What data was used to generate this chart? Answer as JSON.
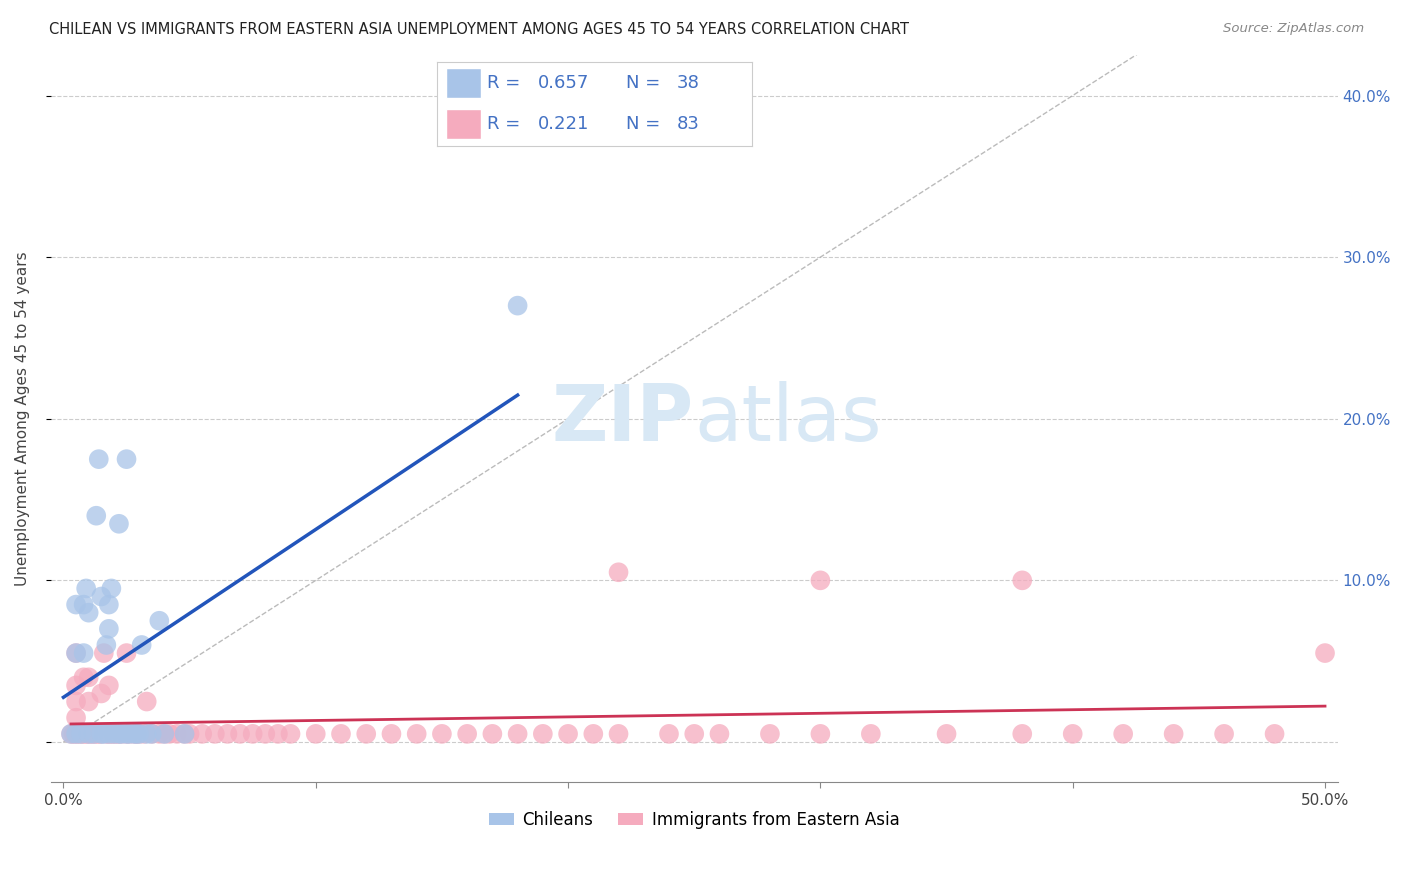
{
  "title": "CHILEAN VS IMMIGRANTS FROM EASTERN ASIA UNEMPLOYMENT AMONG AGES 45 TO 54 YEARS CORRELATION CHART",
  "source": "Source: ZipAtlas.com",
  "ylabel": "Unemployment Among Ages 45 to 54 years",
  "xlim": [
    -0.005,
    0.505
  ],
  "ylim": [
    -0.025,
    0.425
  ],
  "yticks": [
    0.0,
    0.1,
    0.2,
    0.3,
    0.4
  ],
  "ytick_labels": [
    "",
    "10.0%",
    "20.0%",
    "30.0%",
    "40.0%"
  ],
  "xticks": [
    0.0,
    0.1,
    0.2,
    0.3,
    0.4,
    0.5
  ],
  "xtick_labels": [
    "0.0%",
    "",
    "",
    "",
    "",
    "50.0%"
  ],
  "chilean_R": 0.657,
  "chilean_N": 38,
  "immigrant_R": 0.221,
  "immigrant_N": 83,
  "chilean_color": "#a8c4e8",
  "immigrant_color": "#f5abbe",
  "chilean_line_color": "#2255bb",
  "immigrant_line_color": "#cc3355",
  "watermark_color": "#d8e8f5",
  "legend_text_color": "#4472c4",
  "chilean_x": [
    0.003,
    0.005,
    0.005,
    0.005,
    0.007,
    0.008,
    0.008,
    0.009,
    0.01,
    0.01,
    0.012,
    0.013,
    0.014,
    0.015,
    0.015,
    0.016,
    0.017,
    0.018,
    0.018,
    0.018,
    0.019,
    0.02,
    0.022,
    0.022,
    0.023,
    0.025,
    0.025,
    0.026,
    0.028,
    0.029,
    0.03,
    0.031,
    0.033,
    0.035,
    0.038,
    0.04,
    0.048,
    0.18
  ],
  "chilean_y": [
    0.005,
    0.005,
    0.055,
    0.085,
    0.005,
    0.055,
    0.085,
    0.095,
    0.005,
    0.08,
    0.005,
    0.14,
    0.175,
    0.005,
    0.09,
    0.005,
    0.06,
    0.005,
    0.07,
    0.085,
    0.095,
    0.005,
    0.005,
    0.135,
    0.005,
    0.005,
    0.175,
    0.005,
    0.005,
    0.005,
    0.005,
    0.06,
    0.005,
    0.005,
    0.075,
    0.005,
    0.005,
    0.27
  ],
  "immigrant_x": [
    0.003,
    0.004,
    0.005,
    0.005,
    0.005,
    0.005,
    0.005,
    0.006,
    0.007,
    0.008,
    0.008,
    0.009,
    0.01,
    0.01,
    0.01,
    0.011,
    0.012,
    0.013,
    0.014,
    0.015,
    0.015,
    0.016,
    0.017,
    0.018,
    0.018,
    0.019,
    0.02,
    0.021,
    0.022,
    0.023,
    0.025,
    0.025,
    0.026,
    0.028,
    0.029,
    0.03,
    0.032,
    0.033,
    0.035,
    0.038,
    0.04,
    0.042,
    0.045,
    0.048,
    0.05,
    0.055,
    0.06,
    0.065,
    0.07,
    0.075,
    0.08,
    0.085,
    0.09,
    0.1,
    0.11,
    0.12,
    0.13,
    0.14,
    0.15,
    0.16,
    0.17,
    0.18,
    0.19,
    0.2,
    0.21,
    0.22,
    0.24,
    0.25,
    0.26,
    0.28,
    0.3,
    0.32,
    0.35,
    0.38,
    0.4,
    0.42,
    0.44,
    0.46,
    0.48,
    0.5,
    0.22,
    0.3,
    0.38
  ],
  "immigrant_y": [
    0.005,
    0.005,
    0.005,
    0.015,
    0.025,
    0.035,
    0.055,
    0.005,
    0.005,
    0.005,
    0.04,
    0.005,
    0.005,
    0.025,
    0.04,
    0.005,
    0.005,
    0.005,
    0.005,
    0.005,
    0.03,
    0.055,
    0.005,
    0.005,
    0.035,
    0.005,
    0.005,
    0.005,
    0.005,
    0.005,
    0.005,
    0.055,
    0.005,
    0.005,
    0.005,
    0.005,
    0.005,
    0.025,
    0.005,
    0.005,
    0.005,
    0.005,
    0.005,
    0.005,
    0.005,
    0.005,
    0.005,
    0.005,
    0.005,
    0.005,
    0.005,
    0.005,
    0.005,
    0.005,
    0.005,
    0.005,
    0.005,
    0.005,
    0.005,
    0.005,
    0.005,
    0.005,
    0.005,
    0.005,
    0.005,
    0.005,
    0.005,
    0.005,
    0.005,
    0.005,
    0.005,
    0.005,
    0.005,
    0.005,
    0.005,
    0.005,
    0.005,
    0.005,
    0.005,
    0.055,
    0.105,
    0.1,
    0.1
  ],
  "chilean_line_x": [
    0.0,
    0.18
  ],
  "immigrant_line_x": [
    0.003,
    0.5
  ],
  "dashed_line_x": [
    0.0,
    0.5
  ],
  "dashed_line_y": [
    0.0,
    0.5
  ]
}
